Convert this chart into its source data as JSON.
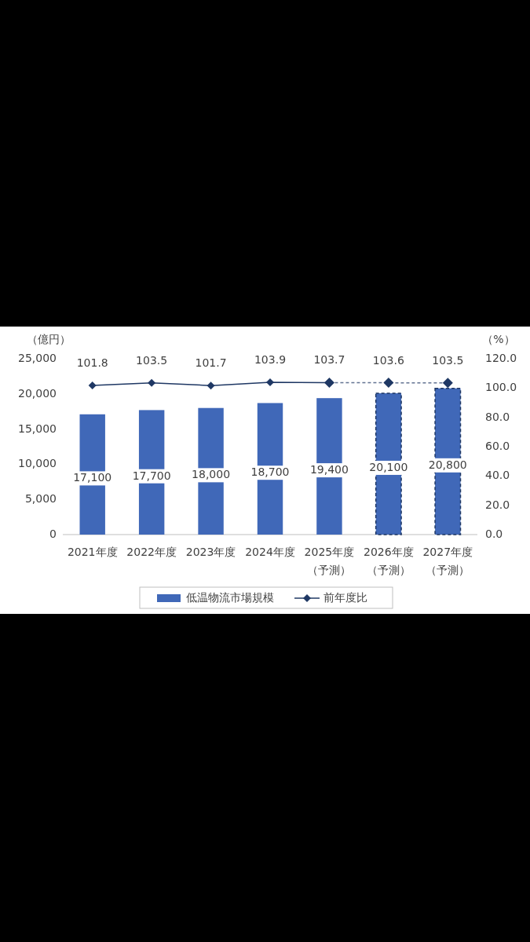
{
  "chart_data": {
    "type": "bar",
    "stacked": true,
    "ylabel": "（億円）",
    "y2label": "（%）",
    "categories": [
      "2021年度",
      "2022年度",
      "2023年度",
      "2024年度",
      "2025年度（予測）",
      "2026年度（予測）",
      "2027年度（予測）"
    ],
    "ylim": [
      0,
      25000
    ],
    "yticks": [
      0,
      {
        "value": 5000,
        "label": "5,000"
      },
      {
        "value": 10000,
        "label": "10,000"
      },
      {
        "value": 15000,
        "label": "15,000"
      },
      {
        "value": 20000,
        "label": "20,000"
      },
      {
        "value": 25000,
        "label": "25,000"
      }
    ],
    "y2lim": [
      0,
      120
    ],
    "y2ticks": [
      {
        "value": 0,
        "label": "0.0"
      },
      {
        "value": 20,
        "label": "20.0"
      },
      {
        "value": 40,
        "label": "40.0"
      },
      {
        "value": 60,
        "label": "60.0"
      },
      {
        "value": 80,
        "label": "80.0"
      },
      {
        "value": 100,
        "label": "100.0"
      },
      {
        "value": 120,
        "label": "120.0"
      }
    ],
    "grid": false,
    "legend": "bottom",
    "series": [
      {
        "name": "低温物流市場規模",
        "color": "#4068b8",
        "values": [
          17100,
          17700,
          18000,
          18700,
          19400,
          null,
          null
        ],
        "value_labels": [
          "17,100",
          "17,700",
          "18,000",
          "18,700",
          "19,400",
          null,
          null
        ]
      },
      {
        "color": "#4068b8",
        "line_style": "dashed",
        "values": [
          null,
          null,
          null,
          null,
          null,
          20100,
          20800
        ],
        "value_labels": [
          null,
          null,
          null,
          null,
          null,
          "20,100",
          "20,800"
        ]
      },
      {
        "name": "前年度比",
        "type": "line",
        "axis": "y2",
        "color": "#1f3864",
        "marker": "diamond",
        "line_style": "solid",
        "values": [
          101.8,
          103.5,
          101.7,
          103.9,
          103.7,
          null,
          null
        ],
        "value_labels": [
          "101.8",
          "103.5",
          "101.7",
          "103.9",
          "103.7",
          null,
          null
        ]
      },
      {
        "type": "line",
        "axis": "y2",
        "color": "#1f3864",
        "marker": "diamond",
        "line_style": "dashed",
        "values": [
          null,
          null,
          null,
          null,
          103.7,
          103.6,
          103.5
        ],
        "value_labels": [
          null,
          null,
          null,
          null,
          null,
          "103.6",
          "103.5"
        ]
      }
    ]
  }
}
